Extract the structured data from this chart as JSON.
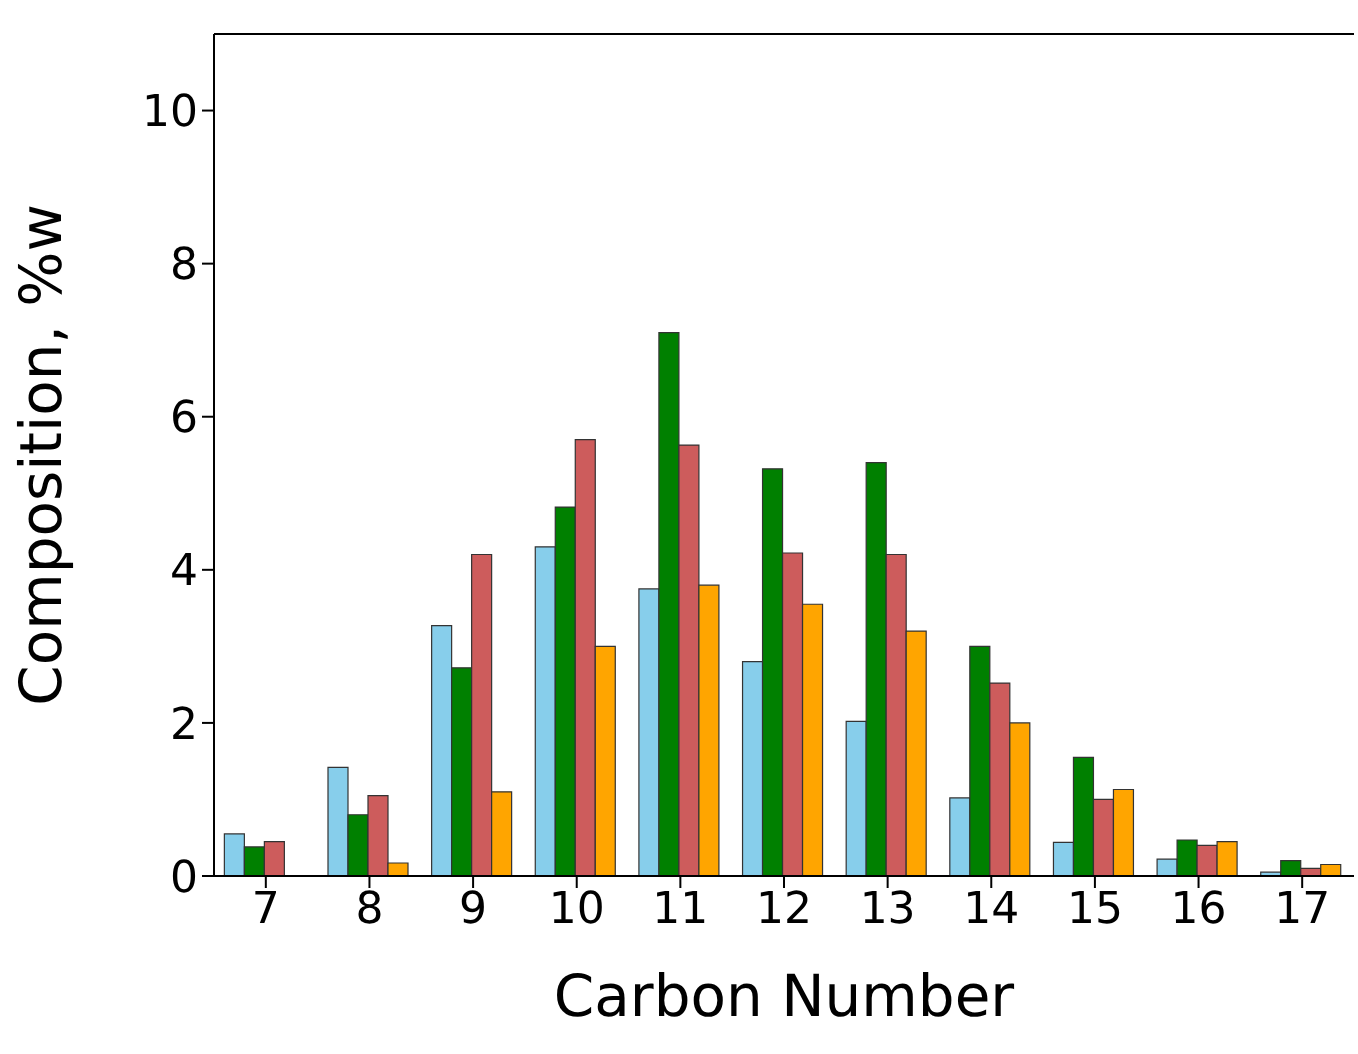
{
  "chart_data": {
    "type": "bar",
    "xlabel": "Carbon Number",
    "ylabel": "Composition, %w",
    "categories": [
      "7",
      "8",
      "9",
      "10",
      "11",
      "12",
      "13",
      "14",
      "15",
      "16",
      "17"
    ],
    "series": [
      {
        "color": "#87ceeb",
        "values": [
          0.55,
          1.42,
          3.27,
          4.3,
          3.75,
          2.8,
          2.02,
          1.02,
          0.44,
          0.22,
          0.05
        ]
      },
      {
        "color": "#008000",
        "values": [
          0.38,
          0.8,
          2.72,
          4.82,
          7.1,
          5.32,
          5.4,
          3.0,
          1.55,
          0.47,
          0.2
        ]
      },
      {
        "color": "#cd5c5c",
        "values": [
          0.45,
          1.05,
          4.2,
          5.7,
          5.63,
          4.22,
          4.2,
          2.52,
          1.0,
          0.4,
          0.1
        ]
      },
      {
        "color": "#ffa500",
        "values": [
          0,
          0.17,
          1.1,
          3.0,
          3.8,
          3.55,
          3.2,
          2.0,
          1.13,
          0.45,
          0.15
        ]
      }
    ],
    "ylim": [
      0,
      11
    ],
    "yticks": [
      0,
      2,
      4,
      6,
      8,
      10
    ],
    "grid": false,
    "legend": false
  }
}
